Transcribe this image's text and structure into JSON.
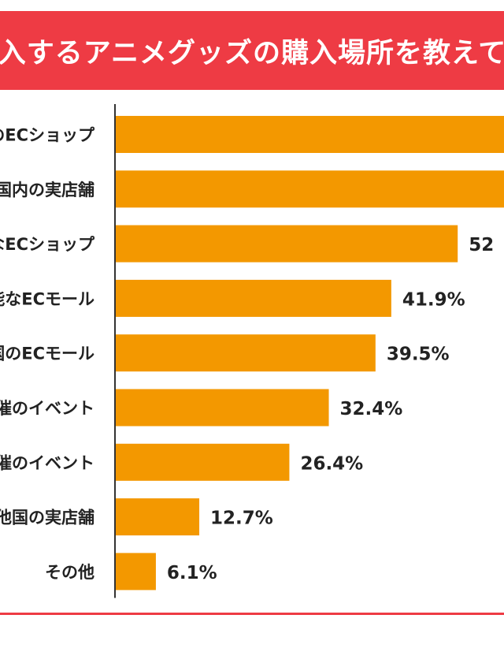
{
  "header": {
    "title": "あなたが購入するアニメグッズの購入場所を教えてください（"
  },
  "colors": {
    "banner": "#ee3b44",
    "bar": "#f39800",
    "axis": "#333333",
    "text": "#222222"
  },
  "chart_data": {
    "type": "bar",
    "orientation": "horizontal",
    "categories": [
      "のECショップ",
      "国内の実店舗",
      "なECショップ",
      "能なECモール",
      "国のECモール",
      "催のイベント",
      "催のイベント",
      "他国の実店舗",
      "その他"
    ],
    "values": [
      null,
      null,
      52,
      41.9,
      39.5,
      32.4,
      26.4,
      12.7,
      6.1
    ],
    "value_labels": [
      "",
      "",
      "52",
      "41.9%",
      "39.5%",
      "32.4%",
      "26.4%",
      "12.7%",
      "6.1%"
    ],
    "unit": "%",
    "grid": false
  }
}
